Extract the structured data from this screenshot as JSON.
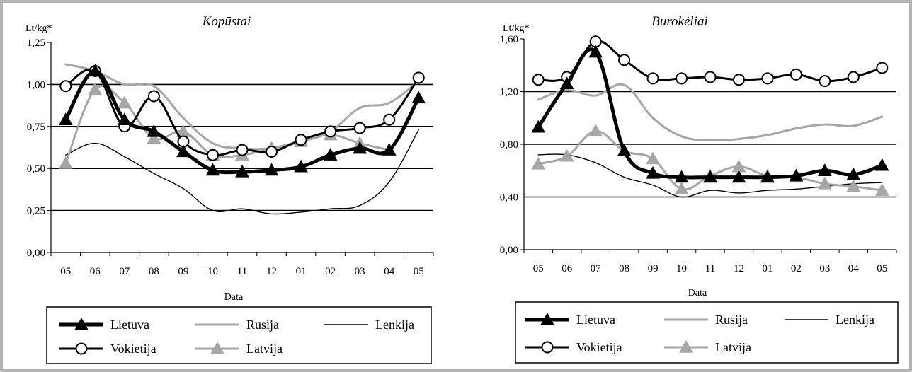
{
  "series_styles": {
    "Lietuva": {
      "color": "#000000",
      "width": 5,
      "marker": "triangle",
      "marker_fill": "#000000",
      "marker_stroke": "#000000"
    },
    "Rusija": {
      "color": "#a6a6a6",
      "width": 3,
      "marker": "none"
    },
    "Lenkija": {
      "color": "#000000",
      "width": 1.4,
      "marker": "none"
    },
    "Vokietija": {
      "color": "#000000",
      "width": 3,
      "marker": "circle",
      "marker_fill": "#ffffff",
      "marker_stroke": "#000000"
    },
    "Latvija": {
      "color": "#a6a6a6",
      "width": 3,
      "marker": "triangle",
      "marker_fill": "#a6a6a6",
      "marker_stroke": "#a6a6a6"
    }
  },
  "chart_data": [
    {
      "type": "line",
      "title": "Kopūstai",
      "ylabel": "Lt/kg*",
      "xlabel": "Data",
      "categories": [
        "05",
        "06",
        "07",
        "08",
        "09",
        "10",
        "11",
        "12",
        "01",
        "02",
        "03",
        "04",
        "05"
      ],
      "ylim": [
        0,
        1.25
      ],
      "yticks": [
        "0,00",
        "0,25",
        "0,50",
        "0,75",
        "1,00",
        "1,25"
      ],
      "ytick_values": [
        0,
        0.25,
        0.5,
        0.75,
        1.0,
        1.25
      ],
      "gridlines": [
        0.25,
        0.5,
        0.75,
        1.0
      ],
      "legend": {
        "placement": "bottom",
        "items": [
          "Lietuva",
          "Rusija",
          "Lenkija",
          "Vokietija",
          "Latvija"
        ]
      },
      "series": [
        {
          "name": "Lietuva",
          "values": [
            0.79,
            1.08,
            0.79,
            0.72,
            0.6,
            0.49,
            0.48,
            0.49,
            0.51,
            0.58,
            0.62,
            0.61,
            0.92
          ]
        },
        {
          "name": "Rusija",
          "values": [
            1.12,
            1.08,
            1.0,
            0.99,
            0.8,
            0.65,
            0.62,
            0.62,
            0.66,
            0.72,
            0.86,
            0.89,
            1.02
          ]
        },
        {
          "name": "Lenkija",
          "values": [
            0.58,
            0.65,
            0.57,
            0.47,
            0.38,
            0.25,
            0.26,
            0.23,
            0.24,
            0.26,
            0.28,
            0.42,
            0.73
          ]
        },
        {
          "name": "Vokietija",
          "values": [
            0.99,
            1.08,
            0.75,
            0.93,
            0.66,
            0.58,
            0.61,
            0.6,
            0.67,
            0.72,
            0.74,
            0.79,
            1.04
          ]
        },
        {
          "name": "Latvija",
          "values": [
            0.53,
            0.97,
            0.89,
            0.68,
            0.72,
            0.58,
            0.58,
            0.62,
            0.66,
            0.7,
            0.65,
            0.61,
            null
          ]
        }
      ]
    },
    {
      "type": "line",
      "title": "Burokėliai",
      "ylabel": "Lt/kg*",
      "xlabel": "Data",
      "categories": [
        "05",
        "06",
        "07",
        "08",
        "09",
        "10",
        "11",
        "12",
        "01",
        "02",
        "03",
        "04",
        "05"
      ],
      "ylim": [
        0,
        1.6
      ],
      "yticks": [
        "0,00",
        "0,40",
        "0,80",
        "1,20",
        "1,60"
      ],
      "ytick_values": [
        0,
        0.4,
        0.8,
        1.2,
        1.6
      ],
      "gridlines": [
        0.4,
        0.8,
        1.2
      ],
      "legend": {
        "placement": "bottom",
        "items": [
          "Lietuva",
          "Rusija",
          "Lenkija",
          "Vokietija",
          "Latvija"
        ]
      },
      "series": [
        {
          "name": "Lietuva",
          "values": [
            0.93,
            1.26,
            1.5,
            0.75,
            0.58,
            0.55,
            0.55,
            0.55,
            0.55,
            0.56,
            0.6,
            0.57,
            0.64
          ]
        },
        {
          "name": "Rusija",
          "values": [
            1.14,
            1.21,
            1.17,
            1.25,
            1.0,
            0.86,
            0.83,
            0.84,
            0.87,
            0.92,
            0.95,
            0.94,
            1.01
          ]
        },
        {
          "name": "Lenkija",
          "values": [
            0.72,
            0.72,
            0.66,
            0.55,
            0.49,
            0.4,
            0.45,
            0.43,
            0.45,
            0.46,
            0.48,
            0.5,
            0.51
          ]
        },
        {
          "name": "Vokietija",
          "values": [
            1.29,
            1.31,
            1.58,
            1.44,
            1.3,
            1.3,
            1.31,
            1.29,
            1.3,
            1.33,
            1.28,
            1.31,
            1.38
          ]
        },
        {
          "name": "Latvija",
          "values": [
            0.65,
            0.71,
            0.9,
            0.75,
            0.69,
            0.46,
            0.56,
            0.63,
            0.56,
            0.55,
            0.5,
            0.48,
            0.45
          ]
        }
      ]
    }
  ]
}
